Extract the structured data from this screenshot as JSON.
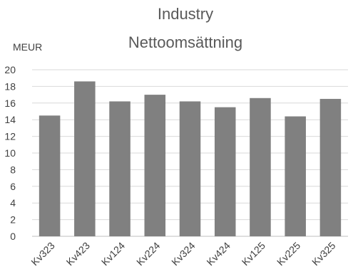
{
  "chart_data": {
    "type": "bar",
    "title_lines": [
      "Industry",
      "Nettoomsättning"
    ],
    "ylabel": "MEUR",
    "xlabel": "",
    "categories": [
      "Kv323",
      "Kv423",
      "Kv124",
      "Kv224",
      "Kv324",
      "Kv424",
      "Kv125",
      "Kv225",
      "Kv325"
    ],
    "values": [
      14.5,
      18.6,
      16.2,
      17.0,
      16.2,
      15.5,
      16.6,
      14.4,
      16.5
    ],
    "ylim": [
      0,
      20
    ],
    "yticks": [
      "0",
      "2",
      "4",
      "6",
      "8",
      "10",
      "12",
      "14",
      "16",
      "18",
      "20"
    ],
    "grid": true,
    "bar_color": "#808080",
    "grid_color": "#d9d9d9"
  }
}
